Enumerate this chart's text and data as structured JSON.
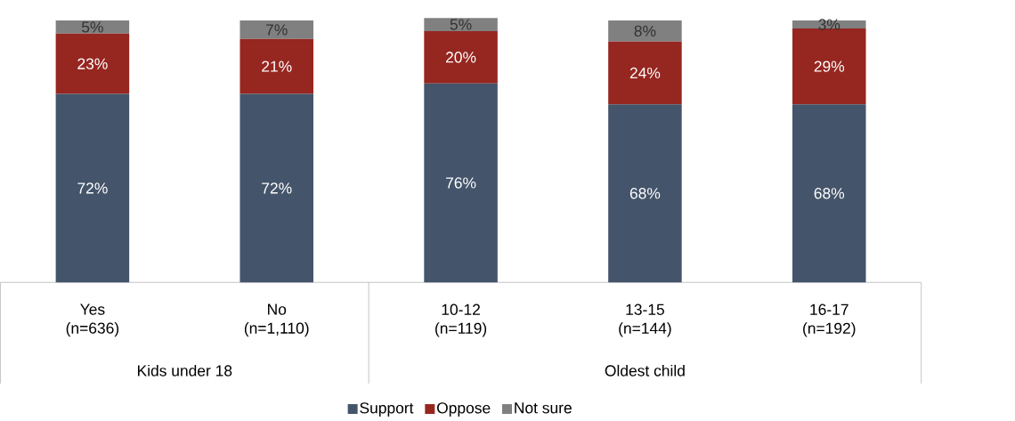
{
  "chart_data": {
    "type": "bar",
    "stacked": true,
    "categories": [
      "Yes (n=636)",
      "No (n=1,110)",
      "10-12 (n=119)",
      "13-15 (n=144)",
      "16-17 (n=192)"
    ],
    "series": [
      {
        "name": "Support",
        "color": "#44546a",
        "values": [
          72,
          72,
          76,
          68,
          68
        ],
        "value_labels": [
          "72%",
          "72%",
          "76%",
          "68%",
          "68%"
        ]
      },
      {
        "name": "Oppose",
        "color": "#962620",
        "values": [
          23,
          21,
          20,
          24,
          29
        ],
        "value_labels": [
          "23%",
          "21%",
          "20%",
          "24%",
          "29%"
        ]
      },
      {
        "name": "Not sure",
        "color": "#808080",
        "values": [
          5,
          7,
          5,
          8,
          3
        ],
        "value_labels": [
          "5%",
          "7%",
          "5%",
          "8%",
          "3%"
        ]
      }
    ],
    "ylim": [
      0,
      101
    ],
    "data_labels": true,
    "legend": "bottom",
    "annotations": [
      "Kids under 18",
      "Oldest child"
    ]
  }
}
